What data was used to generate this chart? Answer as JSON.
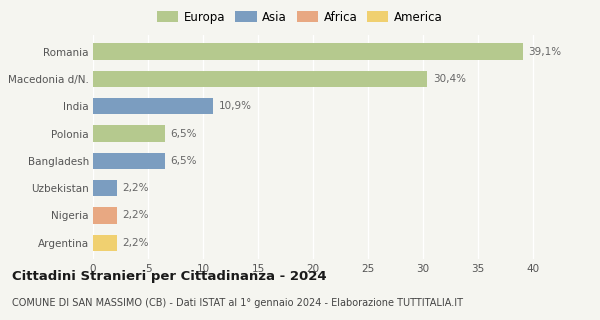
{
  "categories": [
    "Romania",
    "Macedonia d/N.",
    "India",
    "Polonia",
    "Bangladesh",
    "Uzbekistan",
    "Nigeria",
    "Argentina"
  ],
  "values": [
    39.1,
    30.4,
    10.9,
    6.5,
    6.5,
    2.2,
    2.2,
    2.2
  ],
  "labels": [
    "39,1%",
    "30,4%",
    "10,9%",
    "6,5%",
    "6,5%",
    "2,2%",
    "2,2%",
    "2,2%"
  ],
  "bar_colors": [
    "#b5c98e",
    "#b5c98e",
    "#7b9dc0",
    "#b5c98e",
    "#7b9dc0",
    "#7b9dc0",
    "#e8a882",
    "#f0d070"
  ],
  "legend": [
    {
      "label": "Europa",
      "color": "#b5c98e"
    },
    {
      "label": "Asia",
      "color": "#7b9dc0"
    },
    {
      "label": "Africa",
      "color": "#e8a882"
    },
    {
      "label": "America",
      "color": "#f0d070"
    }
  ],
  "xlim": [
    0,
    42
  ],
  "xticks": [
    0,
    5,
    10,
    15,
    20,
    25,
    30,
    35,
    40
  ],
  "title": "Cittadini Stranieri per Cittadinanza - 2024",
  "subtitle": "COMUNE DI SAN MASSIMO (CB) - Dati ISTAT al 1° gennaio 2024 - Elaborazione TUTTITALIA.IT",
  "background_color": "#f5f5f0",
  "bar_height": 0.6,
  "label_fontsize": 7.5,
  "tick_fontsize": 7.5,
  "title_fontsize": 9.5,
  "subtitle_fontsize": 7,
  "legend_fontsize": 8.5
}
